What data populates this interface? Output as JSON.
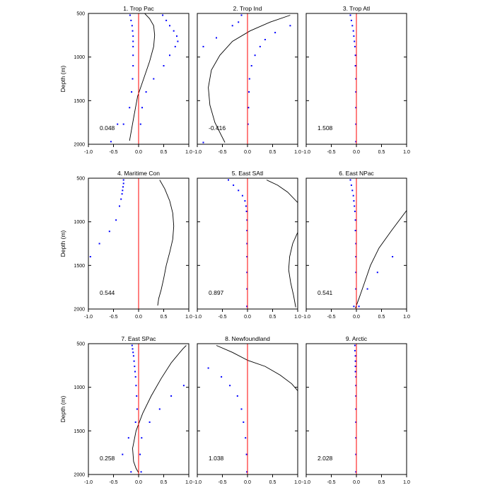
{
  "figure": {
    "y_axis_label": "Depth (m)"
  },
  "chart_data": [
    {
      "type": "scatter",
      "title": "1. Trop Pac",
      "annotation": "0.048",
      "xlim": [
        -1,
        1
      ],
      "ylim": [
        500,
        2000
      ],
      "y_inverted": true,
      "xticks": [
        "-1.0",
        "-0.5",
        "0.0",
        "0.5",
        "1.0"
      ],
      "yticks": [
        "500",
        "1000",
        "1500",
        "2000"
      ],
      "grid": false,
      "series": [
        {
          "kind": "points",
          "color": "#0000ff",
          "x": [
            -0.17,
            -0.15,
            -0.13,
            -0.12,
            -0.11,
            -0.11,
            -0.11,
            -0.11,
            -0.11,
            -0.12,
            -0.14,
            -0.18,
            -0.3,
            -0.42,
            -0.55
          ],
          "y": [
            520,
            580,
            640,
            700,
            760,
            820,
            880,
            980,
            1100,
            1250,
            1400,
            1580,
            1770,
            1770,
            1970
          ]
        },
        {
          "kind": "points",
          "color": "#0000ff",
          "x": [
            0.48,
            0.55,
            0.62,
            0.7,
            0.76,
            0.78,
            0.73,
            0.62,
            0.5,
            0.3,
            0.15,
            0.07,
            0.04
          ],
          "y": [
            520,
            580,
            640,
            700,
            760,
            820,
            880,
            980,
            1100,
            1250,
            1400,
            1580,
            1770
          ]
        },
        {
          "kind": "line",
          "color": "#000000",
          "x": [
            0.12,
            0.22,
            0.3,
            0.32,
            0.3,
            0.22,
            0.1,
            -0.02,
            -0.1,
            -0.18
          ],
          "y": [
            500,
            560,
            640,
            750,
            880,
            1050,
            1250,
            1450,
            1700,
            1960
          ]
        },
        {
          "kind": "vline",
          "color": "#ff0000",
          "x": 0
        }
      ]
    },
    {
      "type": "scatter",
      "title": "2. Trop Ind",
      "annotation": "-0.416",
      "xlim": [
        -1,
        1
      ],
      "ylim": [
        500,
        2000
      ],
      "y_inverted": true,
      "xticks": [
        "-1.0",
        "-0.5",
        "0.0",
        "0.5",
        "1.0"
      ],
      "yticks": [
        "500",
        "1000",
        "1500",
        "2000"
      ],
      "grid": false,
      "series": [
        {
          "kind": "points",
          "color": "#0000ff",
          "x": [
            -0.12,
            -0.18,
            -0.3,
            -0.62,
            -0.88,
            -0.88
          ],
          "y": [
            520,
            600,
            640,
            780,
            880,
            1980
          ]
        },
        {
          "kind": "points",
          "color": "#0000ff",
          "x": [
            0.85,
            0.55,
            0.35,
            0.25,
            0.15,
            0.08,
            0.04,
            0.03,
            0.02,
            0.01
          ],
          "y": [
            640,
            720,
            800,
            880,
            980,
            1100,
            1250,
            1400,
            1580,
            1770
          ]
        },
        {
          "kind": "line",
          "color": "#000000",
          "x": [
            0.85,
            0.45,
            0.05,
            -0.3,
            -0.55,
            -0.72,
            -0.78,
            -0.75,
            -0.65,
            -0.52,
            -0.45
          ],
          "y": [
            520,
            600,
            700,
            820,
            980,
            1150,
            1350,
            1550,
            1750,
            1900,
            1980
          ]
        },
        {
          "kind": "vline",
          "color": "#ff0000",
          "x": 0
        }
      ]
    },
    {
      "type": "scatter",
      "title": "3. Trop Atl",
      "annotation": "1.508",
      "xlim": [
        -1,
        1
      ],
      "ylim": [
        500,
        2000
      ],
      "y_inverted": true,
      "xticks": [
        "-1.0",
        "-0.5",
        "0.0",
        "0.5",
        "1.0"
      ],
      "yticks": [
        "500",
        "1000",
        "1500",
        "2000"
      ],
      "grid": false,
      "series": [
        {
          "kind": "points",
          "color": "#0000ff",
          "x": [
            -0.12,
            -0.1,
            -0.08,
            -0.06,
            -0.05,
            -0.04,
            -0.03,
            -0.02,
            -0.02,
            -0.01,
            -0.01,
            -0.01,
            -0.01,
            -0.01
          ],
          "y": [
            520,
            580,
            640,
            700,
            760,
            820,
            880,
            980,
            1100,
            1250,
            1400,
            1580,
            1770,
            1970
          ]
        },
        {
          "kind": "vline",
          "color": "#ff0000",
          "x": 0
        }
      ]
    },
    {
      "type": "scatter",
      "title": "4. Maritime Con",
      "annotation": "0.544",
      "xlim": [
        -1,
        1
      ],
      "ylim": [
        500,
        2000
      ],
      "y_inverted": true,
      "xticks": [
        "-1.0",
        "-0.5",
        "0.0",
        "0.5",
        "1.0"
      ],
      "yticks": [
        "500",
        "1000",
        "1500",
        "2000"
      ],
      "grid": false,
      "series": [
        {
          "kind": "points",
          "color": "#0000ff",
          "x": [
            -0.3,
            -0.3,
            -0.31,
            -0.32,
            -0.33,
            -0.35,
            -0.38,
            -0.45,
            -0.58,
            -0.78,
            -0.96
          ],
          "y": [
            520,
            560,
            600,
            640,
            680,
            740,
            820,
            980,
            1110,
            1250,
            1400
          ]
        },
        {
          "kind": "line",
          "color": "#000000",
          "x": [
            0.42,
            0.52,
            0.62,
            0.68,
            0.7,
            0.68,
            0.62,
            0.55,
            0.5,
            0.45,
            0.4,
            0.38
          ],
          "y": [
            520,
            620,
            760,
            900,
            1050,
            1200,
            1350,
            1500,
            1650,
            1780,
            1880,
            1960
          ]
        },
        {
          "kind": "vline",
          "color": "#ff0000",
          "x": 0
        }
      ]
    },
    {
      "type": "scatter",
      "title": "5. East SAtl",
      "annotation": "0.897",
      "xlim": [
        -1,
        1
      ],
      "ylim": [
        500,
        2000
      ],
      "y_inverted": true,
      "xticks": [
        "-1.0",
        "-0.5",
        "0.0",
        "0.5",
        "1.0"
      ],
      "yticks": [
        "500",
        "1000",
        "1500",
        "2000"
      ],
      "grid": false,
      "series": [
        {
          "kind": "points",
          "color": "#0000ff",
          "x": [
            -0.38,
            -0.28,
            -0.18,
            -0.1,
            -0.05,
            -0.03,
            -0.02,
            -0.01,
            -0.01,
            -0.01,
            -0.01,
            -0.01,
            -0.01,
            -0.01,
            -0.01
          ],
          "y": [
            520,
            580,
            640,
            700,
            760,
            820,
            880,
            980,
            1100,
            1250,
            1400,
            1580,
            1770,
            1970,
            1970
          ]
        },
        {
          "kind": "line",
          "color": "#000000",
          "x": [
            0.38,
            0.6,
            0.8,
            1.0
          ],
          "y": [
            520,
            580,
            660,
            780
          ]
        },
        {
          "kind": "line",
          "color": "#000000",
          "x": [
            1.0,
            0.9,
            0.84,
            0.82,
            0.86,
            0.92,
            0.96
          ],
          "y": [
            1120,
            1250,
            1400,
            1550,
            1700,
            1850,
            1980
          ]
        },
        {
          "kind": "vline",
          "color": "#ff0000",
          "x": 0
        }
      ]
    },
    {
      "type": "scatter",
      "title": "6. East NPac",
      "annotation": "0.541",
      "xlim": [
        -1,
        1
      ],
      "ylim": [
        500,
        2000
      ],
      "y_inverted": true,
      "xticks": [
        "-1.0",
        "-0.5",
        "0.0",
        "0.5",
        "1.0"
      ],
      "yticks": [
        "500",
        "1000",
        "1500",
        "2000"
      ],
      "grid": false,
      "series": [
        {
          "kind": "points",
          "color": "#0000ff",
          "x": [
            -0.12,
            -0.1,
            -0.08,
            -0.06,
            -0.05,
            -0.04,
            -0.03,
            -0.02,
            -0.02,
            -0.01,
            -0.01,
            -0.01,
            -0.01
          ],
          "y": [
            520,
            580,
            640,
            700,
            760,
            820,
            880,
            980,
            1100,
            1250,
            1400,
            1580,
            1770
          ]
        },
        {
          "kind": "points",
          "color": "#0000ff",
          "x": [
            0.72,
            0.42,
            0.22,
            0.05,
            -0.05
          ],
          "y": [
            1400,
            1580,
            1770,
            1970,
            1970
          ]
        },
        {
          "kind": "line",
          "color": "#000000",
          "x": [
            1.0,
            0.7,
            0.45,
            0.28,
            0.16,
            0.05,
            -0.02
          ],
          "y": [
            870,
            1100,
            1300,
            1500,
            1700,
            1880,
            1990
          ]
        },
        {
          "kind": "vline",
          "color": "#ff0000",
          "x": 0
        }
      ]
    },
    {
      "type": "scatter",
      "title": "7. East SPac",
      "annotation": "0.258",
      "xlim": [
        -1,
        1
      ],
      "ylim": [
        500,
        2000
      ],
      "y_inverted": true,
      "xticks": [
        "-1.0",
        "-0.5",
        "0.0",
        "0.5",
        "1.0"
      ],
      "yticks": [
        "500",
        "1000",
        "1500",
        "2000"
      ],
      "grid": false,
      "series": [
        {
          "kind": "points",
          "color": "#0000ff",
          "x": [
            -0.13,
            -0.12,
            -0.11,
            -0.1,
            -0.09,
            -0.08,
            -0.07,
            -0.06,
            -0.05,
            -0.04,
            -0.03,
            -0.06,
            -0.2,
            -0.32
          ],
          "y": [
            520,
            560,
            600,
            640,
            700,
            760,
            820,
            880,
            980,
            1100,
            1250,
            1400,
            1580,
            1770
          ]
        },
        {
          "kind": "points",
          "color": "#0000ff",
          "x": [
            0.9,
            0.65,
            0.42,
            0.22,
            0.06,
            0.03
          ],
          "y": [
            980,
            1100,
            1250,
            1400,
            1580,
            1770
          ]
        },
        {
          "kind": "points",
          "color": "#0000ff",
          "x": [
            -0.15,
            0.05
          ],
          "y": [
            1970,
            1970
          ]
        },
        {
          "kind": "line",
          "color": "#000000",
          "x": [
            0.95,
            0.88,
            0.65,
            0.45,
            0.25,
            0.08,
            -0.05,
            -0.12,
            -0.1,
            -0.05,
            0.0
          ],
          "y": [
            520,
            560,
            720,
            900,
            1100,
            1300,
            1500,
            1700,
            1850,
            1930,
            1980
          ]
        },
        {
          "kind": "vline",
          "color": "#ff0000",
          "x": 0
        }
      ]
    },
    {
      "type": "scatter",
      "title": "8. Newfoundland",
      "annotation": "1.038",
      "xlim": [
        -1,
        1
      ],
      "ylim": [
        500,
        2000
      ],
      "y_inverted": true,
      "xticks": [
        "-1.0",
        "-0.5",
        "0.0",
        "0.5",
        "1.0"
      ],
      "yticks": [
        "500",
        "1000",
        "1500",
        "2000"
      ],
      "grid": false,
      "series": [
        {
          "kind": "points",
          "color": "#0000ff",
          "x": [
            -0.78,
            -0.52,
            -0.35,
            -0.2,
            -0.12,
            -0.08,
            -0.04,
            -0.02,
            -0.01,
            -0.01
          ],
          "y": [
            780,
            880,
            980,
            1100,
            1250,
            1400,
            1580,
            1770,
            1970,
            1970
          ]
        },
        {
          "kind": "line",
          "color": "#000000",
          "x": [
            -0.62,
            -0.3,
            0.0,
            0.35,
            0.65,
            0.88,
            1.0
          ],
          "y": [
            520,
            600,
            690,
            760,
            860,
            960,
            1040
          ]
        },
        {
          "kind": "vline",
          "color": "#ff0000",
          "x": 0
        }
      ]
    },
    {
      "type": "scatter",
      "title": "9. Arctic",
      "annotation": "2.028",
      "xlim": [
        -1,
        1
      ],
      "ylim": [
        500,
        2000
      ],
      "y_inverted": true,
      "xticks": [
        "-1.0",
        "-0.5",
        "0.0",
        "0.5",
        "1.0"
      ],
      "yticks": [
        "500",
        "1000",
        "1500",
        "2000"
      ],
      "grid": false,
      "series": [
        {
          "kind": "points",
          "color": "#0000ff",
          "x": [
            -0.03,
            -0.03,
            -0.02,
            -0.02,
            -0.02,
            -0.02,
            -0.01,
            -0.01,
            -0.01,
            -0.01,
            -0.01,
            -0.01,
            -0.01,
            -0.01
          ],
          "y": [
            520,
            580,
            640,
            700,
            760,
            820,
            880,
            980,
            1100,
            1250,
            1400,
            1580,
            1770,
            1970
          ]
        },
        {
          "kind": "vline",
          "color": "#ff0000",
          "x": 0
        }
      ]
    }
  ]
}
